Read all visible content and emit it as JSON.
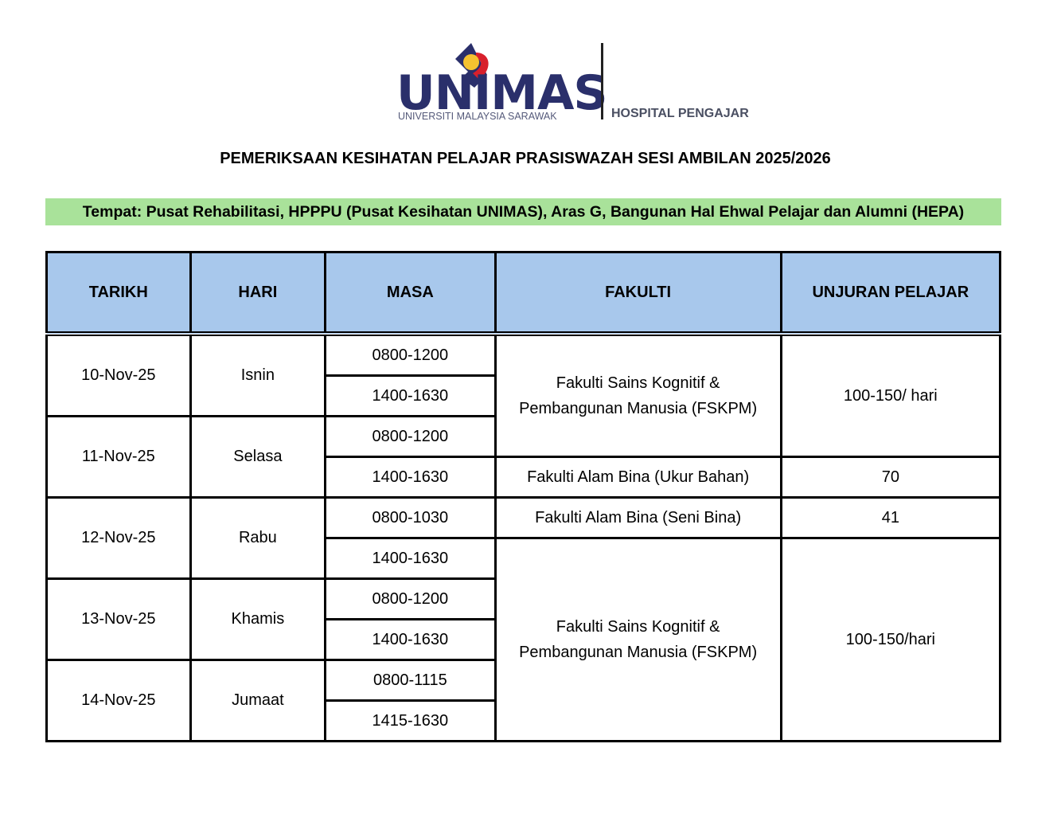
{
  "logo": {
    "name": "UNIMAS",
    "subtitle": "UNIVERSITI MALAYSIA SARAWAK",
    "unit": "HOSPITAL PENGAJAR"
  },
  "title": "PEMERIKSAAN KESIHATAN PELAJAR PRASISWAZAH SESI AMBILAN 2025/2026",
  "venue": "Tempat: Pusat Rehabilitasi, HPPPU (Pusat Kesihatan UNIMAS), Aras G, Bangunan Hal Ehwal Pelajar dan Alumni (HEPA)",
  "colors": {
    "header_bg": "#a8c8ec",
    "venue_bg": "#a9e29a"
  },
  "table": {
    "headers": [
      "TARIKH",
      "HARI",
      "MASA",
      "FAKULTI",
      "UNJURAN PELAJAR"
    ],
    "days": [
      {
        "date": "10-Nov-25",
        "day": "Isnin"
      },
      {
        "date": "11-Nov-25",
        "day": "Selasa"
      },
      {
        "date": "12-Nov-25",
        "day": "Rabu"
      },
      {
        "date": "13-Nov-25",
        "day": "Khamis"
      },
      {
        "date": "14-Nov-25",
        "day": "Jumaat"
      }
    ],
    "times": [
      "0800-1200",
      "1400-1630",
      "0800-1200",
      "1400-1630",
      "0800-1030",
      "1400-1630",
      "0800-1200",
      "1400-1630",
      "0800-1115",
      "1415-1630"
    ],
    "faculty": [
      {
        "line1": "Fakulti Sains Kognitif &",
        "line2": "Pembangunan Manusia (FSKPM)",
        "count": "100-150/ hari"
      },
      {
        "line1": "Fakulti Alam Bina (Ukur Bahan)",
        "count": "70"
      },
      {
        "line1": "Fakulti Alam Bina (Seni Bina)",
        "count": "41"
      },
      {
        "line1": "Fakulti Sains Kognitif &",
        "line2": "Pembangunan Manusia (FSKPM)",
        "count": "100-150/hari"
      }
    ]
  }
}
